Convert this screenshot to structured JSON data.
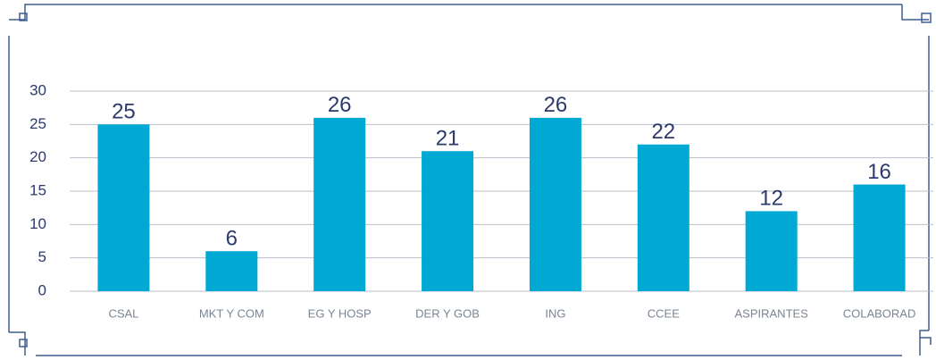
{
  "chart_data": {
    "type": "bar",
    "categories": [
      "CSAL",
      "MKT  Y COM",
      "EG Y HOSP",
      "DER Y GOB",
      "ING",
      "CCEE",
      "ASPIRANTES",
      "COLABORAD"
    ],
    "values": [
      25,
      6,
      26,
      21,
      26,
      22,
      12,
      16
    ],
    "color": "#00a8d4",
    "ylim": [
      0,
      30
    ],
    "yticks": [
      0,
      5,
      10,
      15,
      20,
      25,
      30
    ],
    "grid": true
  }
}
